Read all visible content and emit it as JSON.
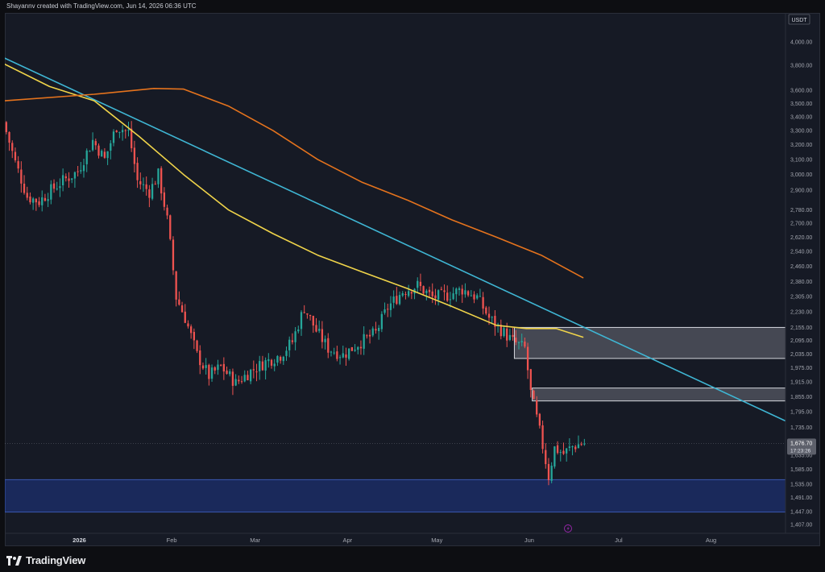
{
  "header": {
    "credit": "Shayannv created with TradingView.com, Jun 14, 2026 06:36 UTC"
  },
  "footer": {
    "brand": "TradingView"
  },
  "colors": {
    "background": "#161a25",
    "up": "#26a69a",
    "down": "#ef5350",
    "trendline": "#3fb6d4",
    "ma_fast": "#f0d44a",
    "ma_slow": "#e5731d",
    "zone_gray": "#5a5d66",
    "zone_blue": "#1a2a5e"
  },
  "chart_data": {
    "type": "candlestick",
    "currency_label": "USDT",
    "scale": "log",
    "ylim": [
      1380,
      4250
    ],
    "y_ticks": [
      "4,000.00",
      "3,800.00",
      "3,600.00",
      "3,500.00",
      "3,400.00",
      "3,300.00",
      "3,200.00",
      "3,100.00",
      "3,000.00",
      "2,900.00",
      "2,780.00",
      "2,700.00",
      "2,620.00",
      "2,540.00",
      "2,460.00",
      "2,380.00",
      "2,305.00",
      "2,230.00",
      "2,155.00",
      "2,095.00",
      "2,035.00",
      "1,975.00",
      "1,915.00",
      "1,855.00",
      "1,795.00",
      "1,735.00",
      "1,635.00",
      "1,585.00",
      "1,535.00",
      "1,491.00",
      "1,447.00",
      "1,407.00"
    ],
    "x_labels": [
      {
        "label": "2026",
        "date": "2026-01-01"
      },
      {
        "label": "Feb",
        "date": "2026-02-01"
      },
      {
        "label": "Mar",
        "date": "2026-03-01"
      },
      {
        "label": "Apr",
        "date": "2026-04-01"
      },
      {
        "label": "May",
        "date": "2026-05-01"
      },
      {
        "label": "Jun",
        "date": "2026-06-01"
      },
      {
        "label": "Jul",
        "date": "2026-07-01"
      },
      {
        "label": "Aug",
        "date": "2026-08-01"
      }
    ],
    "xlim": [
      "2025-12-07",
      "2026-08-26"
    ],
    "last_price": "1,676.70",
    "countdown": "17:23:26",
    "price_path": [
      [
        "2025-12-07",
        3360
      ],
      [
        "2025-12-11",
        3080
      ],
      [
        "2025-12-15",
        2860
      ],
      [
        "2025-12-19",
        2830
      ],
      [
        "2025-12-23",
        2900
      ],
      [
        "2025-12-27",
        2960
      ],
      [
        "2026-01-01",
        3020
      ],
      [
        "2026-01-06",
        3230
      ],
      [
        "2026-01-10",
        3100
      ],
      [
        "2026-01-14",
        3330
      ],
      [
        "2026-01-18",
        3290
      ],
      [
        "2026-01-21",
        2960
      ],
      [
        "2026-01-25",
        2890
      ],
      [
        "2026-01-28",
        3000
      ],
      [
        "2026-01-31",
        2720
      ],
      [
        "2026-02-03",
        2300
      ],
      [
        "2026-02-06",
        2200
      ],
      [
        "2026-02-10",
        2030
      ],
      [
        "2026-02-14",
        1940
      ],
      [
        "2026-02-18",
        1980
      ],
      [
        "2026-02-23",
        1910
      ],
      [
        "2026-02-28",
        1960
      ],
      [
        "2026-03-05",
        2000
      ],
      [
        "2026-03-10",
        2030
      ],
      [
        "2026-03-14",
        2090
      ],
      [
        "2026-03-18",
        2250
      ],
      [
        "2026-03-22",
        2140
      ],
      [
        "2026-03-26",
        2060
      ],
      [
        "2026-03-31",
        2030
      ],
      [
        "2026-04-05",
        2080
      ],
      [
        "2026-04-11",
        2130
      ],
      [
        "2026-04-15",
        2250
      ],
      [
        "2026-04-20",
        2330
      ],
      [
        "2026-04-25",
        2360
      ],
      [
        "2026-04-30",
        2300
      ],
      [
        "2026-05-05",
        2310
      ],
      [
        "2026-05-10",
        2340
      ],
      [
        "2026-05-15",
        2300
      ],
      [
        "2026-05-19",
        2200
      ],
      [
        "2026-05-24",
        2130
      ],
      [
        "2026-05-27",
        2090
      ],
      [
        "2026-05-31",
        2060
      ],
      [
        "2026-06-02",
        1870
      ],
      [
        "2026-06-05",
        1720
      ],
      [
        "2026-06-08",
        1560
      ],
      [
        "2026-06-10",
        1660
      ],
      [
        "2026-06-13",
        1640
      ],
      [
        "2026-06-16",
        1665
      ],
      [
        "2026-06-19",
        1676.7
      ]
    ],
    "series": [
      {
        "name": "trendline",
        "points": [
          [
            "2025-12-07",
            3860
          ],
          [
            "2026-08-26",
            1760
          ]
        ]
      },
      {
        "name": "ma_fast",
        "points": [
          [
            "2025-12-07",
            3810
          ],
          [
            "2025-12-22",
            3630
          ],
          [
            "2026-01-06",
            3520
          ],
          [
            "2026-01-21",
            3260
          ],
          [
            "2026-02-05",
            3000
          ],
          [
            "2026-02-20",
            2780
          ],
          [
            "2026-03-07",
            2640
          ],
          [
            "2026-03-22",
            2520
          ],
          [
            "2026-04-06",
            2430
          ],
          [
            "2026-04-21",
            2345
          ],
          [
            "2026-05-06",
            2255
          ],
          [
            "2026-05-21",
            2165
          ],
          [
            "2026-05-31",
            2150
          ],
          [
            "2026-06-10",
            2150
          ],
          [
            "2026-06-19",
            2110
          ]
        ]
      },
      {
        "name": "ma_slow",
        "points": [
          [
            "2025-12-07",
            3520
          ],
          [
            "2026-01-06",
            3570
          ],
          [
            "2026-01-26",
            3615
          ],
          [
            "2026-02-05",
            3610
          ],
          [
            "2026-02-20",
            3480
          ],
          [
            "2026-03-07",
            3300
          ],
          [
            "2026-03-22",
            3100
          ],
          [
            "2026-04-06",
            2950
          ],
          [
            "2026-04-21",
            2840
          ],
          [
            "2026-05-06",
            2720
          ],
          [
            "2026-05-21",
            2620
          ],
          [
            "2026-06-05",
            2520
          ],
          [
            "2026-06-19",
            2400
          ]
        ]
      }
    ],
    "zones": [
      {
        "name": "supply_upper",
        "from": "2026-05-27",
        "to": "2026-08-26",
        "y_low": 2015,
        "y_high": 2155
      },
      {
        "name": "supply_lower",
        "from": "2026-06-02",
        "to": "2026-08-26",
        "y_low": 1838,
        "y_high": 1890
      },
      {
        "name": "demand",
        "from": "2025-12-07",
        "to": "2026-08-26",
        "y_low": 1445,
        "y_high": 1550
      }
    ],
    "grid": false
  }
}
